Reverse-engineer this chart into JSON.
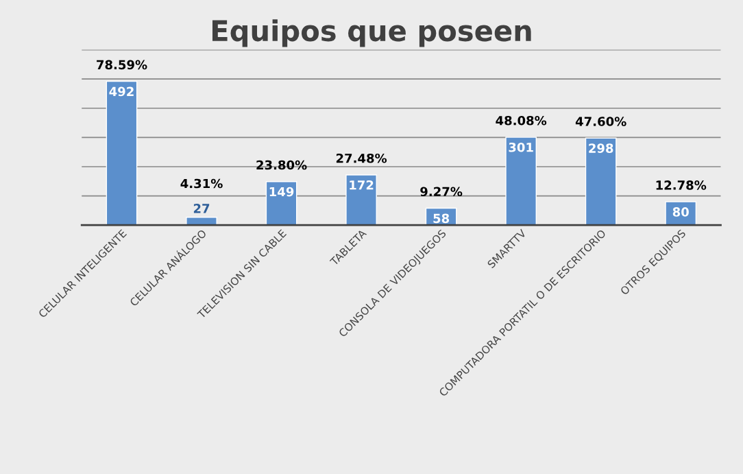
{
  "chart_data": {
    "type": "bar",
    "title": "Equipos que poseen",
    "categories": [
      "CELULAR INTELIGENTE",
      "CELULAR ANÁLOGO",
      "TELEVISION SIN CABLE",
      "TABLETA",
      "CONSOLA DE VIDEOJUEGOS",
      "SMARTTV",
      "COMPUTADORA PORTATIL O DE ESCRITORIO",
      "OTROS EQUIPOS"
    ],
    "values": [
      492,
      27,
      149,
      172,
      58,
      301,
      298,
      80
    ],
    "color": "#5b8fcc",
    "data_labels": true,
    "ylim": [
      0,
      600
    ],
    "yticks": [
      {
        "value": 0,
        "label": null
      },
      {
        "value": 100,
        "label": null
      },
      {
        "value": 200,
        "label": null
      },
      {
        "value": 300,
        "label": null
      },
      {
        "value": 400,
        "label": null
      },
      {
        "value": 500,
        "label": null
      },
      {
        "value": 600,
        "label": null
      }
    ],
    "tick_labels": "x",
    "grid": "y",
    "legend": false,
    "annotations": [
      {
        "text": "78.59%",
        "x": "CELULAR INTELIGENTE",
        "y": 492
      },
      {
        "text": "4.31%",
        "x": "CELULAR ANÁLOGO",
        "y": 27
      },
      {
        "text": "23.80%",
        "x": "TELEVISION SIN CABLE",
        "y": 149
      },
      {
        "text": "27.48%",
        "x": "TABLETA",
        "y": 172
      },
      {
        "text": "9.27%",
        "x": "CONSOLA DE VIDEOJUEGOS",
        "y": 58
      },
      {
        "text": "48.08%",
        "x": "SMARTTV",
        "y": 301
      },
      {
        "text": "47.60%",
        "x": "COMPUTADORA PORTATIL O DE ESCRITORIO",
        "y": 298
      },
      {
        "text": "12.78%",
        "x": "OTROS EQUIPOS",
        "y": 80
      }
    ]
  }
}
